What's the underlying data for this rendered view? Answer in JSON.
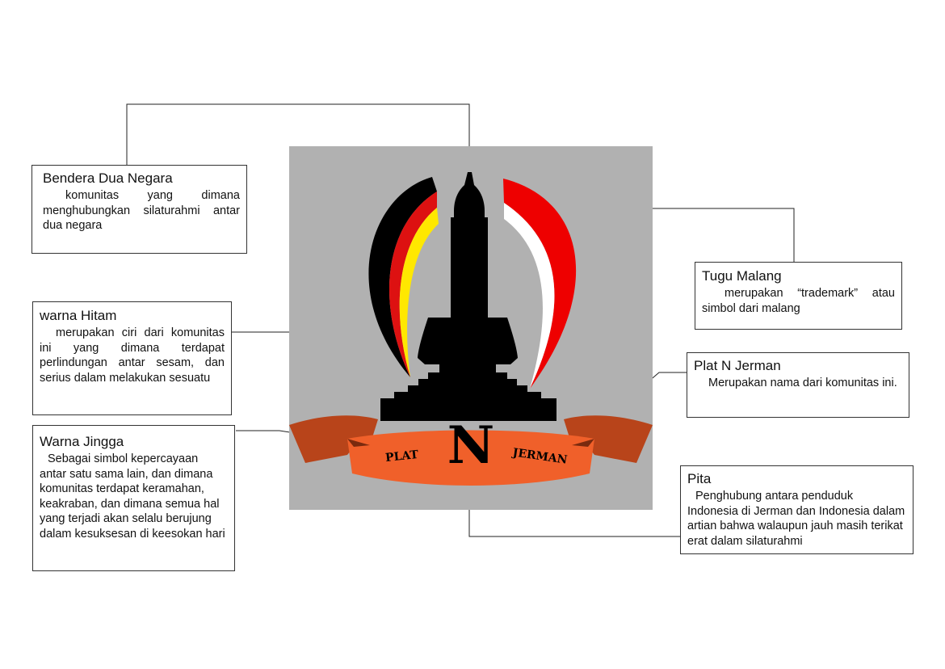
{
  "annotations": {
    "bendera": {
      "title": "Bendera Dua Negara",
      "body": "komunitas yang dimana menghubungkan silaturahmi antar dua negara"
    },
    "tugu": {
      "title": "Tugu Malang",
      "body": "merupakan “trademark” atau simbol dari malang"
    },
    "hitam": {
      "title": "warna Hitam",
      "body": "merupakan ciri dari komunitas ini yang dimana terdapat perlindungan antar sesam, dan serius dalam melakukan sesuatu"
    },
    "platn": {
      "title": "Plat N Jerman",
      "body": "Merupakan nama dari komunitas ini."
    },
    "jingga": {
      "title": "Warna Jingga",
      "body": "Sebagai simbol kepercayaan antar satu sama lain, dan dimana komunitas terdapat keramahan, keakraban, dan dimana semua hal yang terjadi akan selalu berujung dalam kesuksesan di keesokan hari"
    },
    "pita": {
      "title": "Pita",
      "body": "Penghubung antara penduduk Indonesia di Jerman dan Indonesia dalam artian bahwa walaupun jauh masih terikat erat dalam silaturahmi"
    }
  },
  "logo": {
    "ribbon_left": "PLAT",
    "letter": "N",
    "ribbon_right": "JERMAN"
  },
  "colors": {
    "panel": "#b1b1b1",
    "black": "#000000",
    "red_german": "#dd1111",
    "yellow": "#ffe800",
    "red_indonesia": "#ee0000",
    "white": "#ffffff",
    "ribbon_orange": "#f0602a",
    "ribbon_dark": "#b8441a"
  }
}
